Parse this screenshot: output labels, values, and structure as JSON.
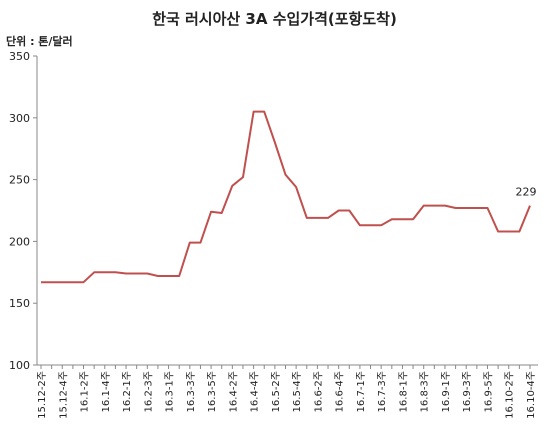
{
  "chart_data": {
    "type": "line",
    "title": "한국 러시아산 3A 수입가격(포항도착)",
    "unit_label": "단위 : 톤/달러",
    "ylim": [
      100,
      350
    ],
    "yticks": [
      100,
      150,
      200,
      250,
      300,
      350
    ],
    "grid": false,
    "line_color": "#c0504d",
    "x_tick_labels": [
      "15.12-2주",
      "15.12-4주",
      "16.1-2주",
      "16.1-4주",
      "16.2-1주",
      "16.2-3주",
      "16.3-1주",
      "16.3-3주",
      "16.3-5주",
      "16.4-2주",
      "16.4-4주",
      "16.5-2주",
      "16.5-4주",
      "16.6-2주",
      "16.6-4주",
      "16.7-1주",
      "16.7-3주",
      "16.8-1주",
      "16.8-3주",
      "16.9-1주",
      "16.9-3주",
      "16.9-5주",
      "16.10-2주",
      "16.10-4주"
    ],
    "values": [
      167,
      167,
      167,
      167,
      167,
      175,
      175,
      175,
      174,
      174,
      174,
      172,
      172,
      172,
      199,
      199,
      224,
      223,
      245,
      252,
      305,
      305,
      280,
      254,
      244,
      219,
      219,
      219,
      225,
      225,
      213,
      213,
      213,
      218,
      218,
      218,
      229,
      229,
      229,
      227,
      227,
      227,
      227,
      208,
      208,
      208,
      229
    ],
    "data_labels": [
      {
        "index": 46,
        "text": "229"
      }
    ]
  }
}
